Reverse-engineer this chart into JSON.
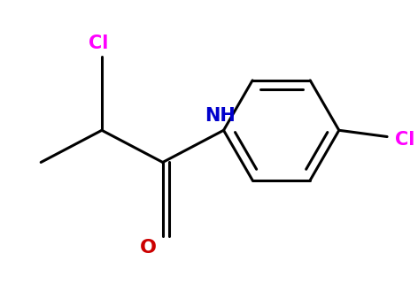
{
  "background": "#ffffff",
  "bond_color": "#000000",
  "bond_lw": 2.2,
  "cl_color": "#ff00ff",
  "nh_color": "#0000cc",
  "o_color": "#cc0000",
  "cl2_color": "#ff00ff",
  "figsize": [
    4.72,
    3.38
  ],
  "dpi": 100,
  "cl1_label": "Cl",
  "nh_label": "NH",
  "o_label": "O",
  "cl2_label": "Cl"
}
